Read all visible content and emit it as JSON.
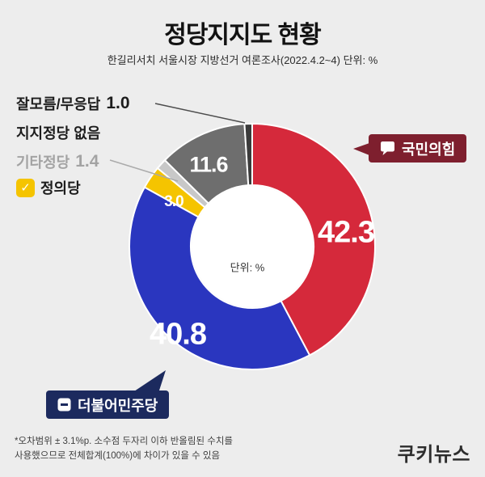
{
  "header": {
    "title": "정당지지도 현황",
    "subtitle": "한길리서치 서울시장 지방선거 여론조사(2022.4.2~4) 단위: %"
  },
  "chart_data": {
    "type": "pie",
    "subtype": "donut",
    "title": "정당지지도 현황",
    "unit": "%",
    "center_label": "단위: %",
    "direction": "clockwise",
    "start_angle": "12-oclock",
    "inner_radius_ratio": 0.5,
    "categories": [
      "국민의힘",
      "더불어민주당",
      "정의당",
      "기타정당",
      "지지정당 없음",
      "잘모름/무응답"
    ],
    "values": [
      42.3,
      40.8,
      3.0,
      1.4,
      11.6,
      1.0
    ],
    "display_values": [
      "42.3",
      "40.8",
      "3.0",
      "1.4",
      "11.6",
      "1.0"
    ],
    "colors": [
      "#d5293b",
      "#2a36bf",
      "#f5c400",
      "#c8c8c8",
      "#6e6e6e",
      "#3b3b3b"
    ]
  },
  "side_labels": {
    "unknown": {
      "label": "잘모름/무응답",
      "value": "1.0"
    },
    "no_party": {
      "label": "지지정당 없음"
    },
    "etc": {
      "label": "기타정당",
      "value": "1.4"
    },
    "justice": {
      "label": "정의당",
      "check_color": "#f5c400",
      "check_glyph": "✓"
    }
  },
  "callouts": {
    "ppp": {
      "label": "국민의힘",
      "bg": "#7e1f2e"
    },
    "dp": {
      "label": "더불어민주당",
      "bg": "#1c2a5e"
    }
  },
  "footer": {
    "note_line1": "*오차범위 ± 3.1%p. 소수점 두자리 이하 반올림된 수치를",
    "note_line2": "사용했으므로 전체합계(100%)에 차이가 있을 수 있음",
    "logo": "쿠키뉴스"
  }
}
